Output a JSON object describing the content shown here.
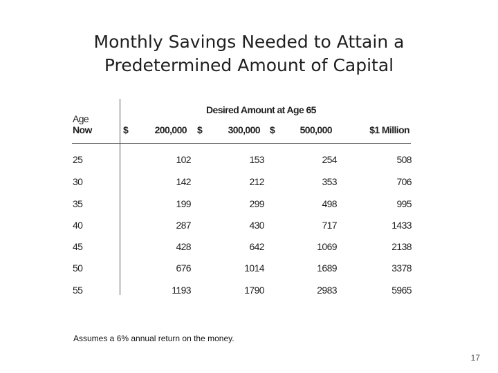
{
  "slide": {
    "title_line1": "Monthly Savings Needed to Attain a",
    "title_line2": "Predetermined Amount of Capital",
    "footnote": "Assumes  a 6% annual  return on the money.",
    "page_number": "17"
  },
  "table": {
    "group_header": "Desired Amount at Age 65",
    "age_header_line1": "Age",
    "age_header_line2": "Now",
    "dollar_sign": "$",
    "columns": [
      "200,000",
      "300,000",
      "500,000",
      "$1 Million"
    ],
    "rows": [
      {
        "age": "25",
        "values": [
          "102",
          "153",
          "254",
          "508"
        ]
      },
      {
        "age": "30",
        "values": [
          "142",
          "212",
          "353",
          "706"
        ]
      },
      {
        "age": "35",
        "values": [
          "199",
          "299",
          "498",
          "995"
        ]
      },
      {
        "age": "40",
        "values": [
          "287",
          "430",
          "717",
          "1433"
        ]
      },
      {
        "age": "45",
        "values": [
          "428",
          "642",
          "1069",
          "2138"
        ]
      },
      {
        "age": "50",
        "values": [
          "676",
          "1014",
          "1689",
          "3378"
        ]
      },
      {
        "age": "55",
        "values": [
          "1193",
          "1790",
          "2983",
          "5965"
        ]
      }
    ]
  }
}
